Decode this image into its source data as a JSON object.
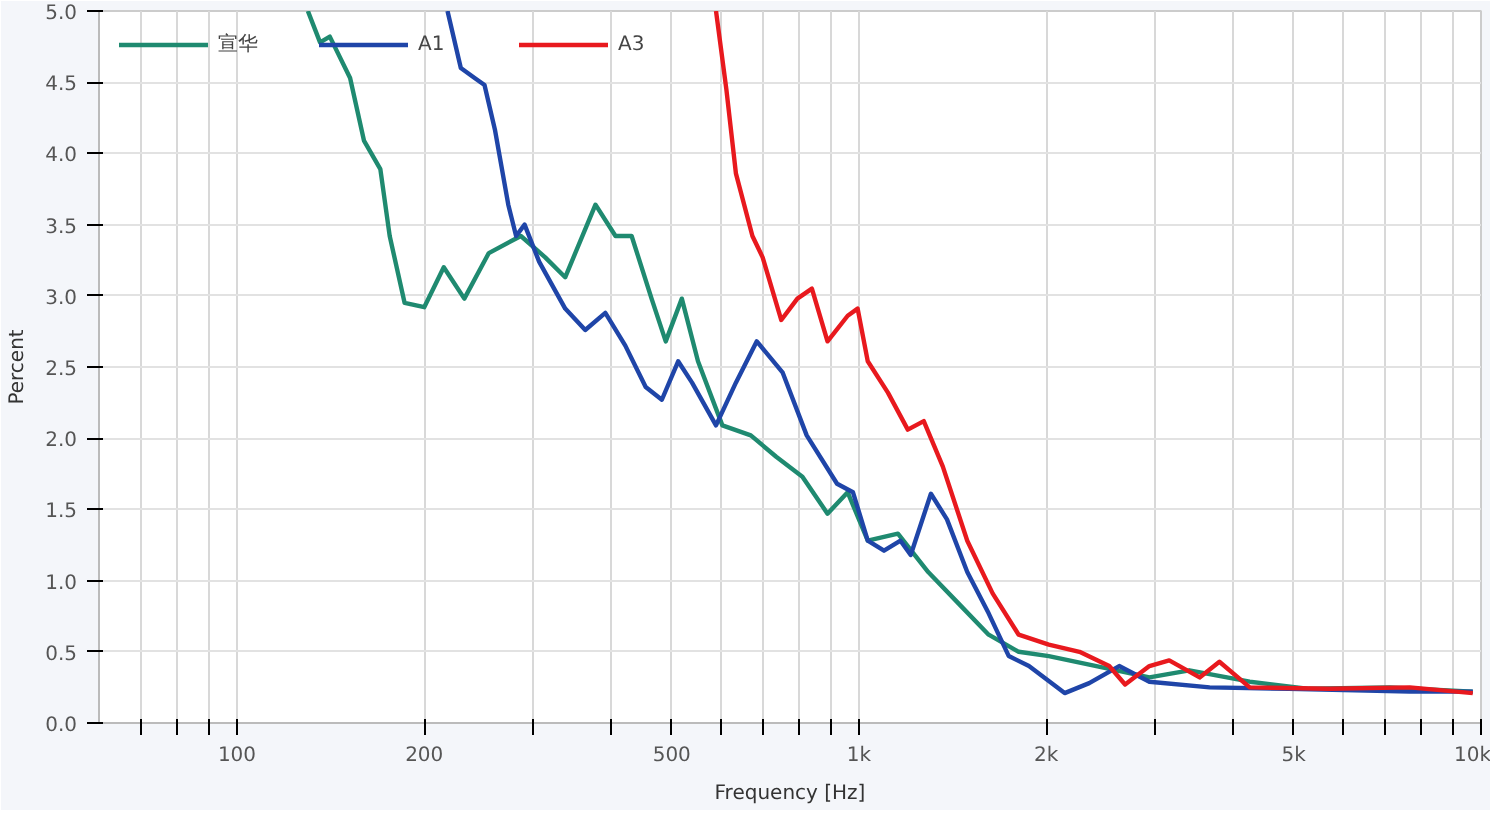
{
  "chart_data": {
    "type": "line",
    "xlabel": "Frequency [Hz]",
    "ylabel": "Percent",
    "log": "x",
    "grid": true,
    "legend": "top left",
    "marker": "none",
    "line_style": "solid",
    "xlim": [
      60,
      10000
    ],
    "ylim": [
      0,
      5
    ],
    "xticks": [
      {
        "value": 70,
        "label": null
      },
      {
        "value": 80,
        "label": null
      },
      {
        "value": 90,
        "label": null
      },
      100,
      200,
      {
        "value": 300,
        "label": null
      },
      {
        "value": 400,
        "label": null
      },
      500,
      {
        "value": 600,
        "label": null
      },
      {
        "value": 700,
        "label": null
      },
      {
        "value": 800,
        "label": null
      },
      {
        "value": 900,
        "label": null
      },
      {
        "value": 1000,
        "label": "1k"
      },
      {
        "value": 2000,
        "label": "2k"
      },
      {
        "value": 3000,
        "label": null
      },
      {
        "value": 4000,
        "label": null
      },
      {
        "value": 5000,
        "label": "5k"
      },
      {
        "value": 6000,
        "label": null
      },
      {
        "value": 7000,
        "label": null
      },
      {
        "value": 8000,
        "label": null
      },
      {
        "value": 9000,
        "label": null
      },
      {
        "value": 10000,
        "label": "10k"
      }
    ],
    "yticks": [
      {
        "value": 0,
        "label": "0.0"
      },
      0.5,
      {
        "value": 1,
        "label": "1.0"
      },
      1.5,
      {
        "value": 2,
        "label": "2.0"
      },
      2.5,
      {
        "value": 3,
        "label": "3.0"
      },
      3.5,
      {
        "value": 4,
        "label": "4.0"
      },
      4.5,
      {
        "value": 5,
        "label": "5.0"
      }
    ],
    "series": [
      {
        "name": "宣华",
        "color": "#1f8a70",
        "x": [
          130,
          136,
          141,
          152,
          160,
          170,
          176,
          186,
          200,
          215,
          232,
          254,
          286,
          313,
          337,
          377,
          406,
          431,
          464,
          489,
          519,
          551,
          603,
          670,
          736,
          811,
          890,
          959,
          1033,
          1155,
          1292,
          1445,
          1616,
          1806,
          2019,
          2345,
          2930,
          3398,
          4248,
          5290,
          7130,
          9700
        ],
        "values": [
          5.0,
          4.78,
          4.82,
          4.53,
          4.09,
          3.89,
          3.42,
          2.95,
          2.92,
          3.2,
          2.98,
          3.3,
          3.42,
          3.27,
          3.13,
          3.64,
          3.42,
          3.42,
          2.98,
          2.68,
          2.98,
          2.54,
          2.09,
          2.02,
          1.87,
          1.73,
          1.47,
          1.62,
          1.28,
          1.33,
          1.06,
          0.84,
          0.62,
          0.5,
          0.47,
          0.41,
          0.32,
          0.37,
          0.29,
          0.24,
          0.25,
          0.22
        ]
      },
      {
        "name": "A1",
        "color": "#1f45a8",
        "x": [
          218,
          229,
          241,
          250,
          260,
          273,
          281,
          290,
          306,
          337,
          363,
          391,
          421,
          454,
          482,
          512,
          539,
          589,
          634,
          685,
          754,
          824,
          922,
          978,
          1033,
          1097,
          1166,
          1211,
          1305,
          1385,
          1493,
          1616,
          1741,
          1876,
          2141,
          2345,
          2620,
          2930,
          3662,
          4904,
          7681,
          9700
        ],
        "values": [
          5.0,
          4.6,
          4.53,
          4.48,
          4.16,
          3.64,
          3.42,
          3.5,
          3.24,
          2.91,
          2.76,
          2.88,
          2.65,
          2.36,
          2.27,
          2.54,
          2.39,
          2.09,
          2.39,
          2.68,
          2.46,
          2.02,
          1.68,
          1.62,
          1.28,
          1.21,
          1.28,
          1.18,
          1.61,
          1.43,
          1.06,
          0.77,
          0.47,
          0.4,
          0.21,
          0.28,
          0.4,
          0.29,
          0.25,
          0.24,
          0.22,
          0.22
        ]
      },
      {
        "name": "A3",
        "color": "#e8191e",
        "x": [
          589,
          612,
          634,
          674,
          700,
          750,
          796,
          840,
          890,
          959,
          995,
          1033,
          1113,
          1198,
          1271,
          1364,
          1493,
          1640,
          1806,
          2019,
          2262,
          2525,
          2678,
          2930,
          3153,
          3529,
          3797,
          4248,
          5700,
          7681,
          9700
        ],
        "values": [
          5.0,
          4.45,
          3.86,
          3.42,
          3.27,
          2.83,
          2.98,
          3.05,
          2.68,
          2.86,
          2.91,
          2.54,
          2.32,
          2.06,
          2.12,
          1.8,
          1.28,
          0.91,
          0.62,
          0.55,
          0.5,
          0.4,
          0.27,
          0.4,
          0.44,
          0.32,
          0.43,
          0.25,
          0.24,
          0.25,
          0.21
        ]
      }
    ]
  }
}
